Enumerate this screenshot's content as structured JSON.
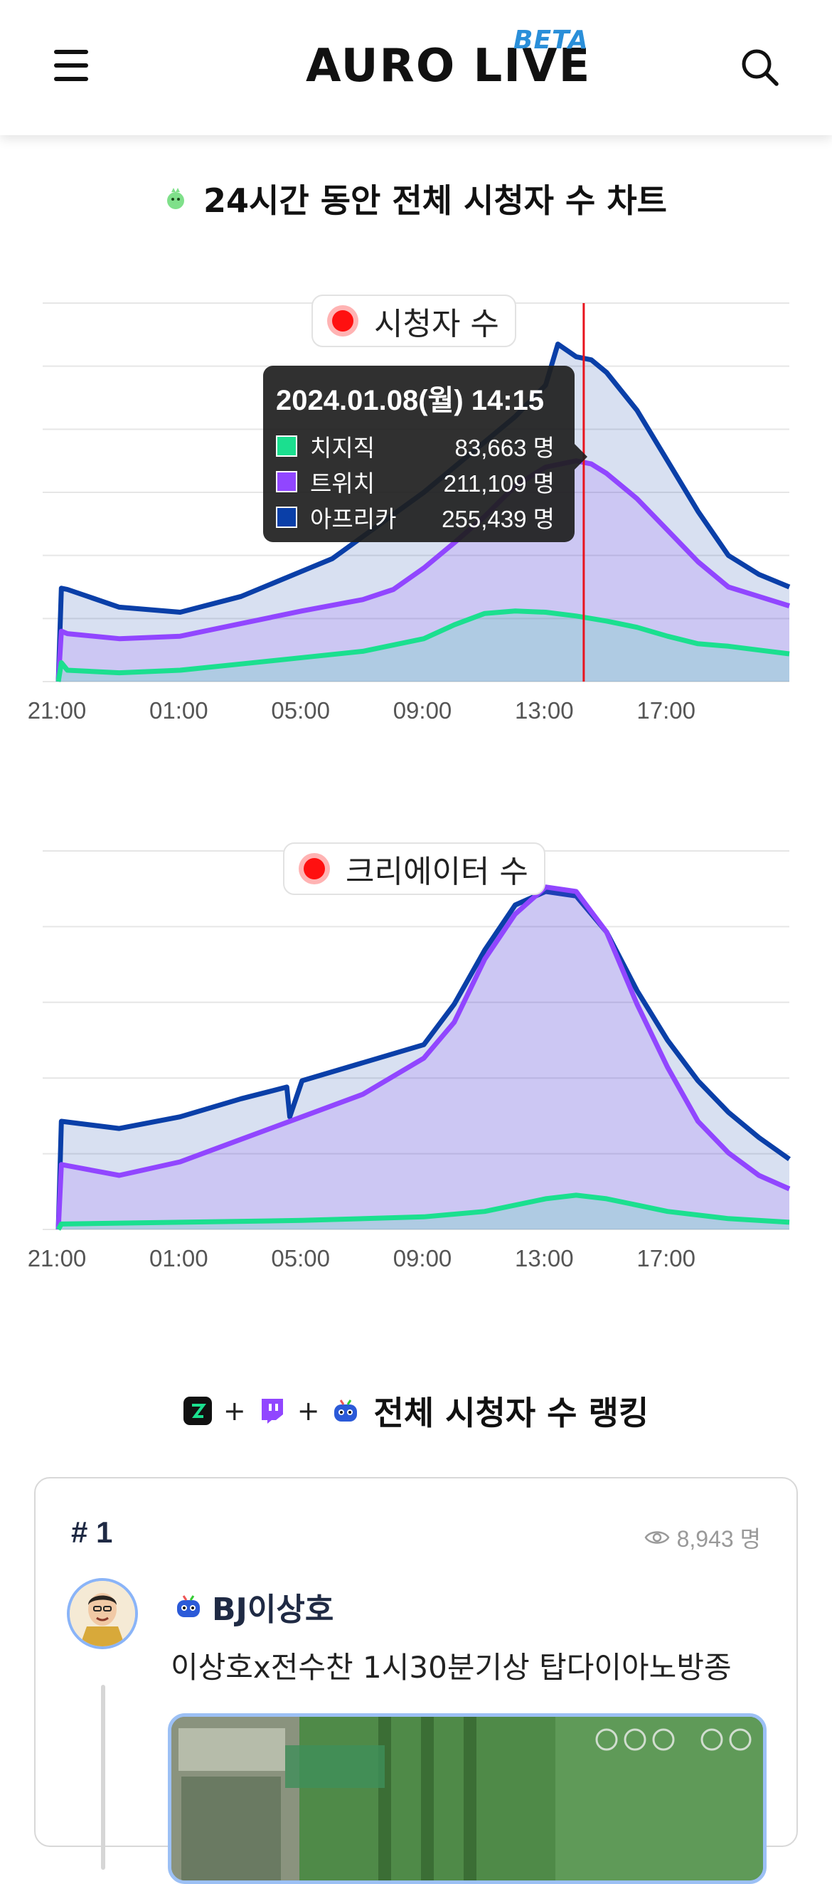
{
  "header": {
    "logo_text": "AURO LIVE",
    "beta_label": "BETA",
    "menu_icon": "hamburger-menu-icon",
    "search_icon": "search-icon"
  },
  "viewer_chart_section": {
    "title": "24시간 동안 전체 시청자 수 차트",
    "icon": "green-mascot-icon"
  },
  "colors": {
    "chzzk": "#1bdf8f",
    "twitch": "#9146ff",
    "afreeca": "#0a3fa8",
    "hover_line": "#e8141e",
    "grid": "#e6e6e6"
  },
  "chart_data": [
    {
      "type": "area",
      "legend": "시청자 수",
      "x_ticks": [
        "21:00",
        "01:00",
        "05:00",
        "09:00",
        "13:00",
        "17:00"
      ],
      "x_hours": [
        0,
        4,
        8,
        12,
        16,
        20
      ],
      "x_range": [
        0,
        24
      ],
      "grid": true,
      "series": [
        {
          "name": "치지직",
          "color": "#1bdf8f",
          "x": [
            0,
            0.1,
            0.3,
            2,
            4,
            6,
            8,
            10,
            12,
            13,
            14,
            15,
            16,
            17,
            18,
            19,
            20,
            21,
            22,
            23,
            24
          ],
          "values": [
            0,
            30,
            18,
            14,
            18,
            28,
            38,
            48,
            68,
            90,
            108,
            112,
            110,
            104,
            96,
            86,
            72,
            60,
            56,
            50,
            44
          ]
        },
        {
          "name": "트위치",
          "color": "#9146ff",
          "x": [
            0,
            0.1,
            0.3,
            2,
            4,
            6,
            8,
            10,
            11,
            12,
            13,
            14,
            15,
            16,
            17,
            17.5,
            18,
            19,
            20,
            21,
            22,
            23,
            24
          ],
          "values": [
            0,
            80,
            76,
            68,
            72,
            92,
            112,
            130,
            146,
            180,
            220,
            262,
            310,
            340,
            350,
            345,
            330,
            290,
            240,
            190,
            150,
            135,
            120
          ]
        },
        {
          "name": "아프리카",
          "color": "#0a3fa8",
          "x": [
            0,
            0.1,
            0.3,
            2,
            4,
            6,
            8,
            9,
            10,
            11,
            12,
            13,
            14,
            15,
            16,
            16.4,
            17,
            17.5,
            18,
            19,
            20,
            21,
            22,
            23,
            24
          ],
          "values": [
            0,
            148,
            146,
            118,
            110,
            135,
            175,
            195,
            230,
            265,
            300,
            340,
            380,
            420,
            470,
            535,
            515,
            510,
            490,
            430,
            350,
            270,
            200,
            170,
            150
          ]
        }
      ],
      "tooltip": {
        "title": "2024.01.08(월) 14:15",
        "rows": [
          {
            "name": "치지직",
            "value": "83,663 명"
          },
          {
            "name": "트위치",
            "value": "211,109 명"
          },
          {
            "name": "아프리카",
            "value": "255,439 명"
          }
        ],
        "hover_x": 17.25
      },
      "y_range": [
        0,
        600
      ]
    },
    {
      "type": "area",
      "legend": "크리에이터 수",
      "x_ticks": [
        "21:00",
        "01:00",
        "05:00",
        "09:00",
        "13:00",
        "17:00"
      ],
      "x_hours": [
        0,
        4,
        8,
        12,
        16,
        20
      ],
      "x_range": [
        0,
        24
      ],
      "grid": true,
      "series": [
        {
          "name": "치지직",
          "color": "#1bdf8f",
          "x": [
            0,
            0.1,
            4,
            8,
            12,
            14,
            16,
            17,
            18,
            20,
            22,
            24
          ],
          "values": [
            0,
            6,
            8,
            10,
            14,
            20,
            34,
            38,
            34,
            20,
            12,
            8
          ]
        },
        {
          "name": "트위치",
          "color": "#9146ff",
          "x": [
            0,
            0.1,
            2,
            4,
            6,
            8,
            10,
            12,
            13,
            14,
            15,
            16,
            17,
            18,
            19,
            20,
            21,
            22,
            23,
            24
          ],
          "values": [
            0,
            72,
            60,
            75,
            100,
            125,
            150,
            190,
            230,
            300,
            350,
            380,
            375,
            330,
            250,
            180,
            120,
            85,
            60,
            45
          ]
        },
        {
          "name": "아프리카",
          "color": "#0a3fa8",
          "x": [
            0,
            0.1,
            2,
            4,
            6,
            7.5,
            7.6,
            8,
            10,
            12,
            13,
            14,
            15,
            16,
            17,
            18,
            19,
            20,
            21,
            22,
            23,
            24
          ],
          "values": [
            0,
            120,
            112,
            125,
            145,
            158,
            125,
            165,
            185,
            205,
            250,
            310,
            360,
            375,
            370,
            330,
            265,
            210,
            165,
            130,
            102,
            78
          ]
        }
      ],
      "y_range": [
        0,
        420
      ]
    }
  ],
  "ranking": {
    "title": "전체 시청자 수 랭킹",
    "plus": "+",
    "platform_icons": [
      "chzzk-icon",
      "twitch-icon",
      "afreeca-icon"
    ],
    "entries": [
      {
        "rank": "# 1",
        "viewers": "8,943 명",
        "name": "BJ이상호",
        "platform": "afreeca",
        "title": "이상호x전수찬 1시30분기상 탑다이아노방종"
      }
    ]
  }
}
